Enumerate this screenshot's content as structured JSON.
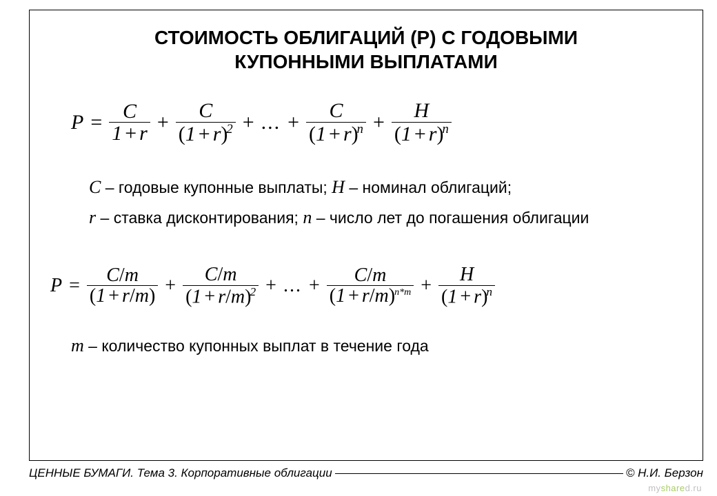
{
  "title_line1": "СТОИМОСТЬ ОБЛИГАЦИЙ (Р) С ГОДОВЫМИ",
  "title_line2": "КУПОННЫМИ ВЫПЛАТАМИ",
  "formula1": {
    "lhs": "P",
    "eq": "=",
    "t1_num": "C",
    "t1_den_a": "1",
    "t1_den_b": "r",
    "plus": "+",
    "t2_num": "C",
    "t2_den_a": "1",
    "t2_den_b": "r",
    "t2_exp": "2",
    "dots": "...",
    "t3_num": "C",
    "t3_den_a": "1",
    "t3_den_b": "r",
    "t3_exp": "n",
    "t4_num": "H",
    "t4_den_a": "1",
    "t4_den_b": "r",
    "t4_exp": "n"
  },
  "legend": {
    "c_sym": "С",
    "c_txt": " – годовые купонные выплаты; ",
    "h_sym": "Н",
    "h_txt": " – номинал облигаций;",
    "r_sym": "r",
    "r_txt": " – ставка дисконтирования; ",
    "n_sym": "n",
    "n_txt": " – число лет до погашения облигации"
  },
  "formula2": {
    "lhs": "P",
    "eq": "=",
    "num": "C",
    "num_div": "/",
    "num_m": "m",
    "den_a": "1",
    "den_b": "r",
    "den_div": "/",
    "den_m": "m",
    "plus": "+",
    "exp2": "2",
    "dots": "...",
    "exp_nm": "n*m",
    "h_num": "H",
    "h_exp": "n"
  },
  "legend2": {
    "m_sym": "m",
    "m_txt": " – количество купонных выплат в течение года"
  },
  "footer_left": "ЦЕННЫЕ БУМАГИ. Тема 3. Корпоративные облигации",
  "footer_right": "© Н.И. Берзон",
  "watermark": {
    "a": "my",
    "b": "share",
    "c": "d.ru"
  },
  "colors": {
    "text": "#000000",
    "background": "#ffffff",
    "watermark_gray": "#c0c0c0",
    "watermark_green": "#a8cc66"
  },
  "fonts": {
    "title_size_pt": 21,
    "formula_family": "Times New Roman",
    "body_family": "Arial"
  }
}
